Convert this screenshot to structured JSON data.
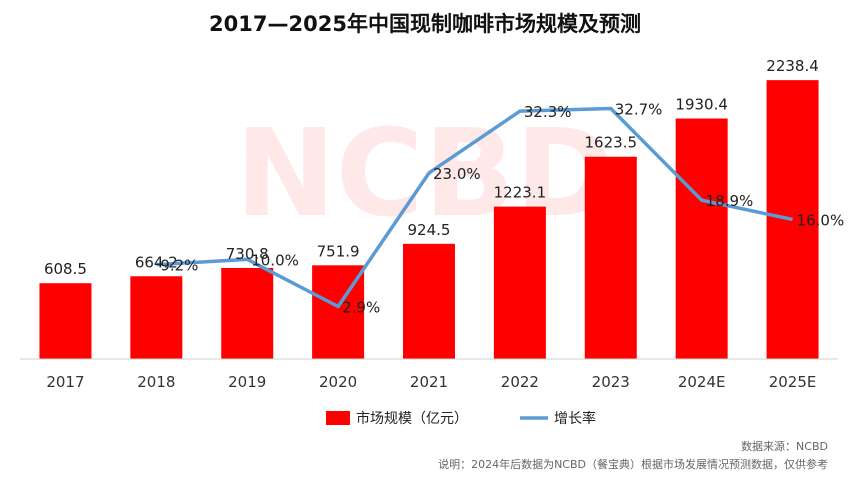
{
  "chart_data": {
    "type": "bar",
    "title": "2017—2025年中国现制咖啡市场规模及预测",
    "categories": [
      "2017",
      "2018",
      "2019",
      "2020",
      "2021",
      "2022",
      "2023",
      "2024E",
      "2025E"
    ],
    "series": [
      {
        "name": "市场规模（亿元）",
        "kind": "bar",
        "color": "#ff0000",
        "values": [
          608.5,
          664.2,
          730.8,
          751.9,
          924.5,
          1223.1,
          1623.5,
          1930.4,
          2238.4
        ],
        "labels": [
          "608.5",
          "664.2",
          "730.8",
          "751.9",
          "924.5",
          "1223.1",
          "1623.5",
          "1930.4",
          "2238.4"
        ]
      },
      {
        "name": "增长率",
        "kind": "line",
        "color": "#5b9bd5",
        "values": [
          null,
          9.2,
          10.0,
          2.9,
          23.0,
          32.3,
          32.7,
          18.9,
          16.0
        ],
        "labels": [
          "",
          "9.2%",
          "10.0%",
          "2.9%",
          "23.0%",
          "32.3%",
          "32.7%",
          "18.9%",
          "16.0%"
        ]
      }
    ],
    "ylim_bar": [
      0,
      2400
    ],
    "ylim_line": [
      -5,
      40
    ],
    "legend_position": "bottom",
    "watermark": "NCBD"
  },
  "footer": {
    "source": "数据来源：NCBD",
    "note": "说明：2024年后数据为NCBD（餐宝典）根据市场发展情况预测数据，仅供参考"
  }
}
